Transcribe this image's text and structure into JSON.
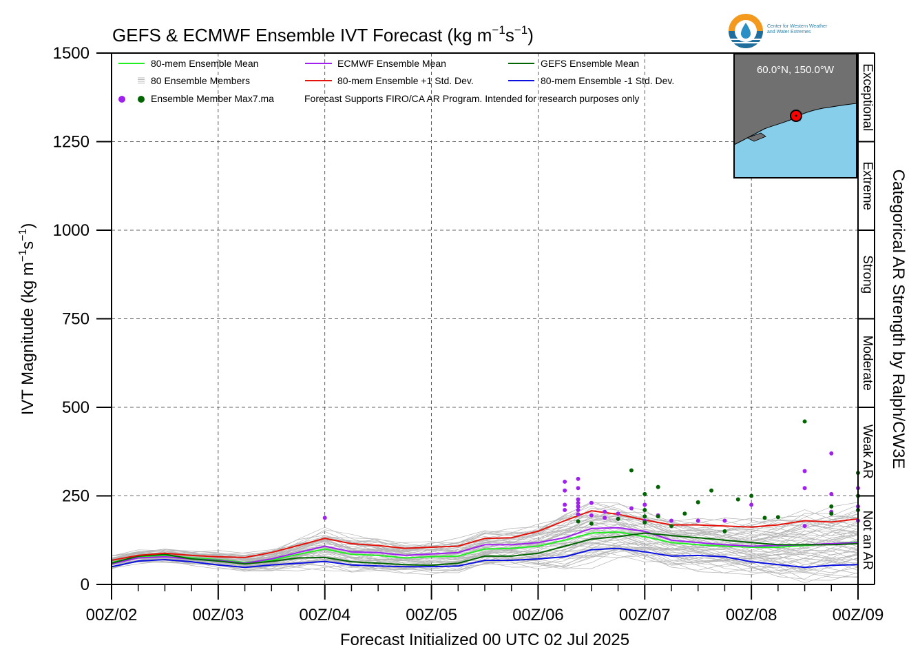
{
  "logo": {
    "line1": "Center for Western Weather",
    "line2": "and Water Extremes"
  },
  "inset": {
    "location": "60.0°N, 150.0°W"
  },
  "colors": {
    "mean80": "#22ee22",
    "ecmwf": "#a020f0",
    "gefs": "#006400",
    "plus1": "#e3120b",
    "minus1": "#0a10e0",
    "members": "#b4b4b4",
    "ocean": "#87ceeb",
    "land": "#707070"
  },
  "chart_data": {
    "type": "line",
    "title_parts": [
      "GEFS & ECMWF Ensemble IVT Forecast (kg m",
      "−1",
      "s",
      "−1",
      ")"
    ],
    "xlabel": "Forecast Initialized 00 UTC 02 Jul 2025",
    "ylabel_parts": [
      "IVT Magnitude (kg m",
      "−1",
      "s",
      "−1",
      ")"
    ],
    "right_label": "Categorical AR Strength by Ralph/CW3E",
    "ylim": [
      0,
      1500
    ],
    "xlim": [
      0,
      168
    ],
    "y_ticks": [
      0,
      250,
      500,
      750,
      1000,
      1250,
      1500
    ],
    "x_ticks": [
      {
        "h": 0,
        "label": "00Z/02"
      },
      {
        "h": 24,
        "label": "00Z/03"
      },
      {
        "h": 48,
        "label": "00Z/04"
      },
      {
        "h": 72,
        "label": "00Z/05"
      },
      {
        "h": 96,
        "label": "00Z/06"
      },
      {
        "h": 120,
        "label": "00Z/07"
      },
      {
        "h": 144,
        "label": "00Z/08"
      },
      {
        "h": 168,
        "label": "00Z/09"
      }
    ],
    "grid": true,
    "categories": [
      {
        "label": "Not an AR",
        "from": 0,
        "to": 250
      },
      {
        "label": "Weak AR",
        "from": 250,
        "to": 500
      },
      {
        "label": "Moderate",
        "from": 500,
        "to": 750
      },
      {
        "label": "Strong",
        "from": 750,
        "to": 1000
      },
      {
        "label": "Extreme",
        "from": 1000,
        "to": 1250
      },
      {
        "label": "Exceptional",
        "from": 1250,
        "to": 1500
      }
    ],
    "legend": {
      "placement": "top-left",
      "entries": [
        {
          "label": "80-mem Ensemble Mean",
          "color": "#22ee22",
          "kind": "line"
        },
        {
          "label": "ECMWF Ensemble Mean",
          "color": "#a020f0",
          "kind": "line"
        },
        {
          "label": "GEFS Ensemble Mean",
          "color": "#006400",
          "kind": "line"
        },
        {
          "label": "80 Ensemble Members",
          "color": "#b4b4b4",
          "kind": "multiline"
        },
        {
          "label": "80-mem Ensemble +1 Std. Dev.",
          "color": "#e3120b",
          "kind": "line"
        },
        {
          "label": "80-mem Ensemble -1 Std. Dev.",
          "color": "#0a10e0",
          "kind": "line"
        },
        {
          "label": "Ensemble Member Max7.ma",
          "color": "#a020f0",
          "kind": "dots"
        }
      ],
      "note": "Forecast Supports FIRO/CA AR Program. Intended for research purposes only"
    },
    "x": [
      0,
      6,
      12,
      18,
      24,
      30,
      36,
      42,
      48,
      54,
      60,
      66,
      72,
      78,
      84,
      90,
      96,
      102,
      108,
      114,
      120,
      126,
      132,
      138,
      144,
      150,
      156,
      162,
      168
    ],
    "series": [
      {
        "name": "80-mem Ensemble Mean",
        "color": "#22ee22",
        "values": [
          62,
          78,
          82,
          75,
          70,
          62,
          68,
          85,
          100,
          85,
          82,
          75,
          78,
          80,
          100,
          102,
          108,
          125,
          145,
          148,
          135,
          118,
          112,
          108,
          105,
          105,
          110,
          115,
          120
        ]
      },
      {
        "name": "ECMWF Ensemble Mean",
        "color": "#a020f0",
        "values": [
          58,
          75,
          78,
          72,
          68,
          60,
          72,
          90,
          108,
          92,
          90,
          82,
          86,
          90,
          112,
          112,
          118,
          132,
          158,
          160,
          150,
          125,
          118,
          112,
          108,
          110,
          112,
          115,
          118
        ]
      },
      {
        "name": "GEFS Ensemble Mean",
        "color": "#006400",
        "values": [
          60,
          80,
          85,
          72,
          66,
          58,
          65,
          75,
          76,
          64,
          60,
          56,
          54,
          60,
          80,
          80,
          88,
          108,
          128,
          135,
          145,
          138,
          132,
          125,
          118,
          112,
          112,
          112,
          115
        ]
      },
      {
        "name": "80-mem Ensemble +1 Std. Dev.",
        "color": "#e3120b",
        "values": [
          68,
          82,
          88,
          82,
          78,
          76,
          90,
          110,
          130,
          115,
          110,
          102,
          105,
          108,
          130,
          132,
          150,
          180,
          208,
          198,
          182,
          168,
          168,
          165,
          162,
          168,
          180,
          176,
          185
        ]
      },
      {
        "name": "80-mem Ensemble -1 Std. Dev.",
        "color": "#0a10e0",
        "values": [
          50,
          66,
          70,
          64,
          55,
          48,
          55,
          60,
          65,
          55,
          52,
          50,
          50,
          52,
          68,
          68,
          72,
          78,
          98,
          102,
          92,
          80,
          82,
          78,
          64,
          56,
          48,
          54,
          56
        ]
      }
    ],
    "member_max_points": [
      {
        "model": "ECMWF",
        "color": "#a020f0",
        "points": [
          [
            48,
            188
          ],
          [
            102,
            290
          ],
          [
            102,
            265
          ],
          [
            102,
            225
          ],
          [
            102,
            210
          ],
          [
            105,
            298
          ],
          [
            105,
            272
          ],
          [
            105,
            240
          ],
          [
            105,
            230
          ],
          [
            105,
            220
          ],
          [
            105,
            210
          ],
          [
            105,
            198
          ],
          [
            108,
            230
          ],
          [
            108,
            195
          ],
          [
            111,
            205
          ],
          [
            111,
            188
          ],
          [
            114,
            200
          ],
          [
            114,
            185
          ],
          [
            117,
            215
          ],
          [
            120,
            225
          ],
          [
            120,
            180
          ],
          [
            123,
            195
          ],
          [
            126,
            180
          ],
          [
            132,
            180
          ],
          [
            138,
            180
          ],
          [
            144,
            225
          ],
          [
            156,
            320
          ],
          [
            156,
            272
          ],
          [
            156,
            165
          ],
          [
            162,
            370
          ],
          [
            162,
            255
          ],
          [
            162,
            205
          ],
          [
            168,
            272
          ],
          [
            168,
            220
          ],
          [
            168,
            180
          ]
        ]
      },
      {
        "model": "GEFS",
        "color": "#006400",
        "points": [
          [
            105,
            178
          ],
          [
            108,
            172
          ],
          [
            114,
            185
          ],
          [
            117,
            322
          ],
          [
            120,
            255
          ],
          [
            120,
            210
          ],
          [
            120,
            192
          ],
          [
            120,
            175
          ],
          [
            123,
            275
          ],
          [
            123,
            192
          ],
          [
            126,
            165
          ],
          [
            129,
            200
          ],
          [
            132,
            232
          ],
          [
            135,
            265
          ],
          [
            138,
            150
          ],
          [
            141,
            240
          ],
          [
            144,
            250
          ],
          [
            147,
            188
          ],
          [
            150,
            190
          ],
          [
            156,
            460
          ],
          [
            162,
            220
          ],
          [
            162,
            200
          ],
          [
            168,
            315
          ],
          [
            168,
            250
          ],
          [
            168,
            210
          ]
        ]
      }
    ]
  }
}
